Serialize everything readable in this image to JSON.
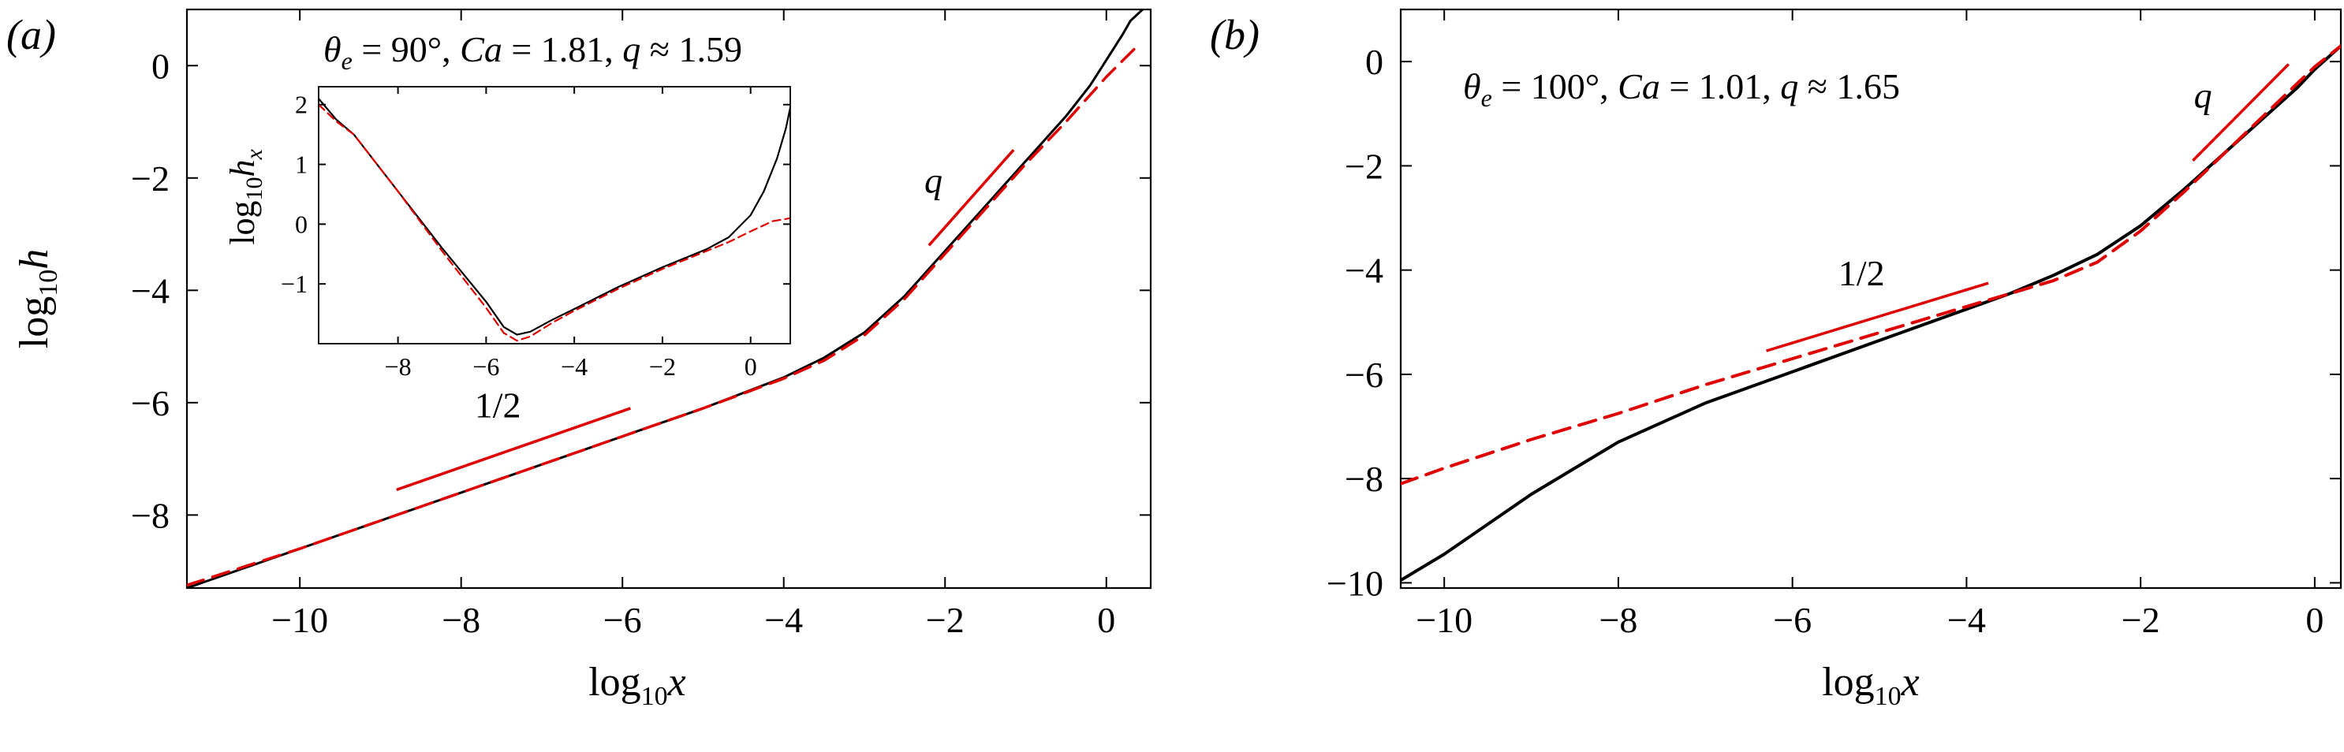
{
  "chart_data": [
    {
      "type": "line",
      "panel_label": "(a)",
      "annotation": "θe = 90°, Ca = 1.81, q ≈ 1.59",
      "xlabel": "log10 x",
      "ylabel": "log10 h",
      "xlim": [
        -11.4,
        0.55
      ],
      "ylim": [
        -9.3,
        1.0
      ],
      "xticks": [
        -10,
        -8,
        -6,
        -4,
        -2,
        0
      ],
      "yticks": [
        -8,
        -6,
        -4,
        -2,
        0
      ],
      "xtick_labels": [
        "−10",
        "−8",
        "−6",
        "−4",
        "−2",
        "0"
      ],
      "ytick_labels": [
        "−8",
        "−6",
        "−4",
        "−2",
        "0"
      ],
      "series": [
        {
          "style": "solid",
          "color": "#000000",
          "x": [
            -11.4,
            -10,
            -8,
            -6,
            -5,
            -4,
            -3.5,
            -3,
            -2.5,
            -2,
            -1.5,
            -1,
            -0.5,
            -0.2,
            0,
            0.2,
            0.3,
            0.45
          ],
          "y": [
            -9.3,
            -8.6,
            -7.6,
            -6.6,
            -6.1,
            -5.55,
            -5.2,
            -4.75,
            -4.1,
            -3.3,
            -2.5,
            -1.7,
            -0.9,
            -0.35,
            0.1,
            0.55,
            0.8,
            1.0
          ]
        },
        {
          "style": "dashed",
          "color": "#e00000",
          "x": [
            -11.4,
            -10,
            -8,
            -6,
            -5,
            -4,
            -3.5,
            -3,
            -2.5,
            -2,
            -1.5,
            -1,
            -0.5,
            0,
            0.35
          ],
          "y": [
            -9.25,
            -8.6,
            -7.6,
            -6.6,
            -6.1,
            -5.57,
            -5.25,
            -4.8,
            -4.15,
            -3.35,
            -2.55,
            -1.75,
            -1.0,
            -0.2,
            0.3
          ]
        }
      ],
      "slope_markers": [
        {
          "label": "1/2",
          "x": [
            -8.8,
            -5.9
          ],
          "y": [
            -7.55,
            -6.1
          ]
        },
        {
          "label": "q",
          "x": [
            -2.2,
            -1.15
          ],
          "y": [
            -3.2,
            -1.5
          ]
        }
      ],
      "inset": {
        "xlabel": "",
        "ylabel": "log10 hx",
        "xlim": [
          -9.8,
          0.9
        ],
        "ylim": [
          -2.0,
          2.3
        ],
        "xticks": [
          -8,
          -6,
          -4,
          -2,
          0
        ],
        "yticks": [
          -1,
          0,
          1,
          2
        ],
        "xtick_labels": [
          "−8",
          "−6",
          "−4",
          "−2",
          "0"
        ],
        "ytick_labels": [
          "−1",
          "0",
          "1",
          "2"
        ],
        "series": [
          {
            "style": "solid",
            "color": "#000000",
            "x": [
              -9.8,
              -9.4,
              -9,
              -8,
              -7,
              -6,
              -5.6,
              -5.3,
              -5,
              -4.5,
              -4,
              -3,
              -2,
              -1,
              -0.5,
              0,
              0.3,
              0.6,
              0.8,
              0.9
            ],
            "y": [
              2.1,
              1.75,
              1.5,
              0.55,
              -0.4,
              -1.3,
              -1.72,
              -1.85,
              -1.8,
              -1.6,
              -1.42,
              -1.05,
              -0.72,
              -0.42,
              -0.22,
              0.15,
              0.55,
              1.1,
              1.6,
              1.95
            ]
          },
          {
            "style": "dashed",
            "color": "#e00000",
            "x": [
              -9.8,
              -9.4,
              -9,
              -8,
              -7,
              -6,
              -5.6,
              -5.3,
              -5,
              -4.5,
              -4,
              -3,
              -2,
              -1,
              -0.5,
              0,
              0.5,
              0.9
            ],
            "y": [
              2.0,
              1.72,
              1.5,
              0.55,
              -0.45,
              -1.4,
              -1.82,
              -1.95,
              -1.88,
              -1.65,
              -1.45,
              -1.08,
              -0.75,
              -0.45,
              -0.3,
              -0.12,
              0.05,
              0.1
            ]
          }
        ]
      }
    },
    {
      "type": "line",
      "panel_label": "(b)",
      "annotation": "θe = 100°, Ca = 1.01, q ≈ 1.65",
      "xlabel": "log10 x",
      "ylabel": "",
      "xlim": [
        -10.5,
        0.3
      ],
      "ylim": [
        -10.1,
        1.0
      ],
      "xticks": [
        -10,
        -8,
        -6,
        -4,
        -2,
        0
      ],
      "yticks": [
        -10,
        -8,
        -6,
        -4,
        -2,
        0
      ],
      "xtick_labels": [
        "−10",
        "−8",
        "−6",
        "−4",
        "−2",
        "0"
      ],
      "ytick_labels": [
        "−10",
        "−8",
        "−6",
        "−4",
        "−2",
        "0"
      ],
      "series": [
        {
          "style": "solid",
          "color": "#000000",
          "x": [
            -10.5,
            -10,
            -9,
            -8,
            -7,
            -6,
            -5,
            -4,
            -3.5,
            -3,
            -2.5,
            -2,
            -1.5,
            -1,
            -0.5,
            -0.2,
            0,
            0.3
          ],
          "y": [
            -9.95,
            -9.45,
            -8.3,
            -7.3,
            -6.55,
            -5.95,
            -5.35,
            -4.75,
            -4.45,
            -4.1,
            -3.7,
            -3.15,
            -2.45,
            -1.7,
            -0.95,
            -0.5,
            -0.15,
            0.3
          ]
        },
        {
          "style": "dashed",
          "color": "#e00000",
          "x": [
            -10.5,
            -10,
            -9,
            -8,
            -7,
            -6,
            -5,
            -4,
            -3.5,
            -3,
            -2.5,
            -2,
            -1.5,
            -1,
            -0.5,
            0,
            0.3
          ],
          "y": [
            -8.1,
            -7.8,
            -7.25,
            -6.75,
            -6.2,
            -5.7,
            -5.2,
            -4.7,
            -4.45,
            -4.2,
            -3.85,
            -3.25,
            -2.5,
            -1.7,
            -0.9,
            -0.1,
            0.3
          ]
        }
      ],
      "slope_markers": [
        {
          "label": "1/2",
          "x": [
            -6.3,
            -3.75
          ],
          "y": [
            -5.55,
            -4.25
          ]
        },
        {
          "label": "q",
          "x": [
            -1.4,
            -0.3
          ],
          "y": [
            -1.9,
            -0.05
          ]
        }
      ]
    }
  ]
}
